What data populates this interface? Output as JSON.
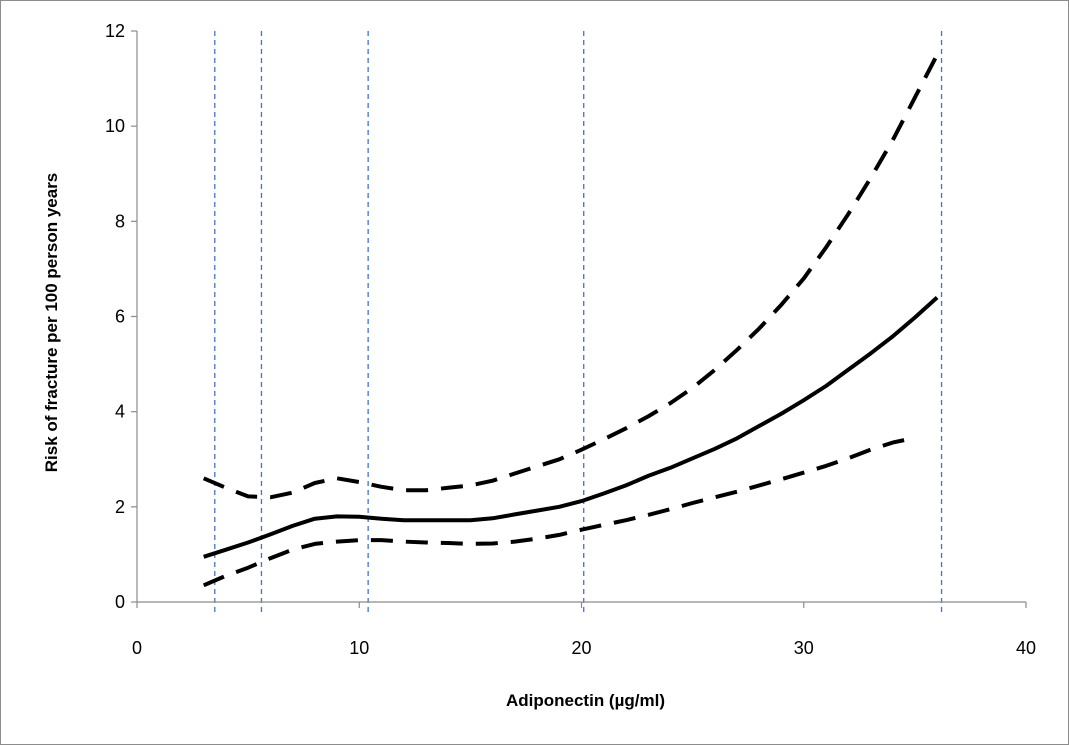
{
  "chart_data": {
    "type": "line",
    "title": "",
    "xlabel": "Adiponectin (µg/ml)",
    "ylabel": "Risk of fracture per 100 person years",
    "xlim": [
      0,
      40
    ],
    "ylim": [
      0,
      12
    ],
    "x_ticks": [
      0,
      10,
      20,
      30,
      40
    ],
    "y_ticks": [
      0,
      2,
      4,
      6,
      8,
      10,
      12
    ],
    "x_tick_labels": [
      "0",
      "10",
      "20",
      "30",
      "40"
    ],
    "y_tick_labels": [
      "0",
      "2",
      "4",
      "6",
      "8",
      "10",
      "12"
    ],
    "grid": false,
    "legend": "none",
    "series": [
      {
        "style": "solid",
        "color": "#000000",
        "x": [
          3,
          4,
          5,
          6,
          7,
          8,
          9,
          10,
          11,
          12,
          13,
          14,
          15,
          16,
          17,
          18,
          19,
          20,
          21,
          22,
          23,
          24,
          25,
          26,
          27,
          28,
          29,
          30,
          31,
          32,
          33,
          34,
          35,
          36
        ],
        "y": [
          0.95,
          1.1,
          1.25,
          1.42,
          1.6,
          1.75,
          1.8,
          1.79,
          1.75,
          1.72,
          1.72,
          1.72,
          1.72,
          1.76,
          1.84,
          1.92,
          2.0,
          2.12,
          2.28,
          2.45,
          2.65,
          2.82,
          3.02,
          3.22,
          3.44,
          3.7,
          3.96,
          4.24,
          4.54,
          4.88,
          5.22,
          5.58,
          5.98,
          6.4
        ]
      },
      {
        "style": "dashed",
        "color": "#000000",
        "x": [
          3,
          4,
          5,
          6,
          7,
          8,
          9,
          10,
          11,
          12,
          13,
          14,
          15,
          16,
          17,
          18,
          19,
          20,
          21,
          22,
          23,
          24,
          25,
          26,
          27,
          28,
          29,
          30,
          31,
          32,
          33,
          34,
          35,
          36
        ],
        "y": [
          2.6,
          2.4,
          2.22,
          2.2,
          2.3,
          2.5,
          2.6,
          2.52,
          2.42,
          2.35,
          2.35,
          2.4,
          2.45,
          2.55,
          2.7,
          2.85,
          3.0,
          3.2,
          3.42,
          3.65,
          3.9,
          4.18,
          4.5,
          4.88,
          5.3,
          5.75,
          6.25,
          6.8,
          7.45,
          8.15,
          8.9,
          9.7,
          10.6,
          11.5
        ]
      },
      {
        "style": "dashed",
        "color": "#000000",
        "x": [
          3,
          4,
          5,
          6,
          7,
          8,
          9,
          10,
          11,
          12,
          13,
          14,
          15,
          16,
          17,
          18,
          19,
          20,
          21,
          22,
          23,
          24,
          25,
          26,
          27,
          28,
          29,
          30,
          31,
          32,
          33,
          34,
          35
        ],
        "y": [
          0.35,
          0.55,
          0.72,
          0.92,
          1.1,
          1.22,
          1.27,
          1.3,
          1.3,
          1.27,
          1.25,
          1.24,
          1.22,
          1.23,
          1.27,
          1.33,
          1.41,
          1.52,
          1.62,
          1.72,
          1.83,
          1.95,
          2.08,
          2.2,
          2.32,
          2.45,
          2.58,
          2.72,
          2.86,
          3.02,
          3.2,
          3.35,
          3.45
        ]
      }
    ],
    "reference_lines": {
      "color": "#4472c4",
      "style": "dotted",
      "x": [
        3.5,
        5.6,
        10.4,
        20.1,
        36.2
      ]
    }
  }
}
